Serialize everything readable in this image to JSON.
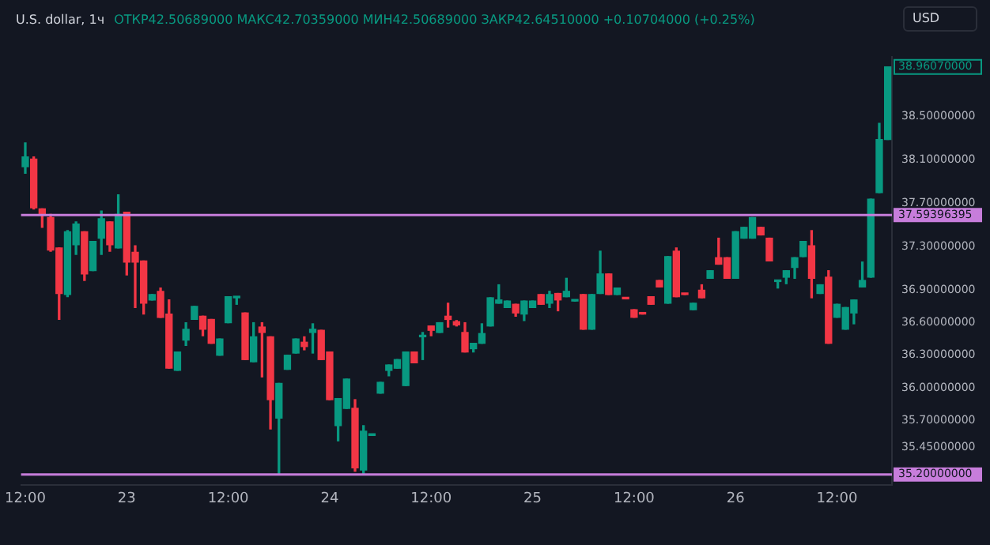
{
  "chart_data": {
    "type": "candlestick",
    "title": "U.S. dollar, 1ч",
    "subtitle": "ОТКР42.50689000 МАКС42.70359000 МИН42.50689000 ЗАКР42.64510000 +0.10704000 (+0.25%)",
    "annotations": [
      "USD",
      "38.96070000"
    ],
    "categories": [
      "12:00",
      null,
      null,
      null,
      null,
      null,
      null,
      null,
      null,
      null,
      null,
      null,
      "23",
      null,
      null,
      null,
      null,
      null,
      null,
      null,
      null,
      null,
      null,
      null,
      "12:00",
      null,
      null,
      null,
      null,
      null,
      null,
      null,
      null,
      null,
      null,
      null,
      "24",
      null,
      null,
      null,
      null,
      null,
      null,
      null,
      null,
      null,
      null,
      null,
      "12:00",
      null,
      null,
      null,
      null,
      null,
      null,
      null,
      null,
      null,
      null,
      null,
      "25",
      null,
      null,
      null,
      null,
      null,
      null,
      null,
      null,
      null,
      null,
      null,
      "12:00",
      null,
      null,
      null,
      null,
      null,
      null,
      null,
      null,
      null,
      null,
      null,
      "26",
      null,
      null,
      null,
      null,
      null,
      null,
      null,
      null,
      null,
      null,
      null,
      "12:00",
      null,
      null,
      null,
      null,
      null,
      null
    ],
    "ohlc": [
      [
        38.04,
        38.26,
        37.98,
        38.13
      ],
      [
        38.11,
        38.13,
        37.65,
        37.66
      ],
      [
        37.65,
        37.65,
        37.48,
        37.6
      ],
      [
        37.57,
        37.6,
        37.26,
        37.27
      ],
      [
        37.29,
        37.29,
        36.63,
        36.87
      ],
      [
        36.86,
        37.45,
        36.84,
        37.44
      ],
      [
        37.32,
        37.53,
        37.23,
        37.51
      ],
      [
        37.44,
        37.44,
        36.99,
        37.05
      ],
      [
        37.08,
        37.35,
        37.08,
        37.35
      ],
      [
        37.38,
        37.63,
        37.23,
        37.56
      ],
      [
        37.53,
        37.53,
        37.26,
        37.32
      ],
      [
        37.29,
        37.78,
        37.29,
        37.6
      ],
      [
        37.62,
        37.62,
        37.04,
        37.16
      ],
      [
        37.25,
        37.31,
        36.74,
        37.16
      ],
      [
        37.17,
        37.17,
        36.68,
        36.78
      ],
      [
        36.81,
        36.86,
        36.81,
        36.86
      ],
      [
        36.89,
        36.92,
        36.65,
        36.65
      ],
      [
        36.68,
        36.81,
        36.18,
        36.18
      ],
      [
        36.16,
        36.33,
        36.16,
        36.33
      ],
      [
        36.44,
        36.6,
        36.39,
        36.54
      ],
      [
        36.63,
        36.75,
        36.63,
        36.75
      ],
      [
        36.66,
        36.66,
        36.48,
        36.54
      ],
      [
        36.63,
        36.63,
        36.41,
        36.41
      ],
      [
        36.3,
        36.45,
        36.3,
        36.45
      ],
      [
        36.6,
        36.84,
        36.6,
        36.84
      ],
      [
        36.83,
        36.84,
        36.77,
        36.84
      ],
      [
        36.69,
        36.69,
        36.26,
        36.26
      ],
      [
        36.24,
        36.6,
        36.24,
        36.47
      ],
      [
        36.56,
        36.6,
        36.1,
        36.51
      ],
      [
        36.47,
        36.47,
        35.62,
        35.89
      ],
      [
        35.72,
        36.04,
        35.2,
        36.04
      ],
      [
        36.17,
        36.3,
        36.17,
        36.3
      ],
      [
        36.32,
        36.45,
        36.32,
        36.45
      ],
      [
        36.42,
        36.47,
        36.35,
        36.38
      ],
      [
        36.51,
        36.59,
        36.32,
        36.54
      ],
      [
        36.53,
        36.53,
        36.26,
        36.26
      ],
      [
        36.33,
        36.33,
        35.89,
        35.89
      ],
      [
        35.65,
        35.9,
        35.51,
        35.9
      ],
      [
        35.81,
        36.08,
        35.81,
        36.08
      ],
      [
        35.81,
        35.89,
        35.23,
        35.26
      ],
      [
        35.24,
        35.65,
        35.21,
        35.6
      ],
      [
        35.56,
        35.57,
        35.56,
        35.57
      ],
      [
        35.95,
        36.05,
        35.95,
        36.05
      ],
      [
        36.16,
        36.21,
        36.11,
        36.21
      ],
      [
        36.18,
        36.26,
        36.18,
        36.26
      ],
      [
        36.02,
        36.33,
        36.02,
        36.33
      ],
      [
        36.33,
        36.33,
        36.23,
        36.23
      ],
      [
        36.47,
        36.51,
        36.26,
        36.48
      ],
      [
        36.57,
        36.57,
        36.48,
        36.53
      ],
      [
        36.51,
        36.6,
        36.51,
        36.6
      ],
      [
        36.66,
        36.78,
        36.56,
        36.63
      ],
      [
        36.61,
        36.62,
        36.57,
        36.58
      ],
      [
        36.51,
        36.6,
        36.33,
        36.33
      ],
      [
        36.36,
        36.41,
        36.33,
        36.41
      ],
      [
        36.41,
        36.59,
        36.41,
        36.5
      ],
      [
        36.57,
        36.83,
        36.57,
        36.83
      ],
      [
        36.78,
        36.95,
        36.78,
        36.81
      ],
      [
        36.74,
        36.8,
        36.74,
        36.8
      ],
      [
        36.77,
        36.77,
        36.66,
        36.69
      ],
      [
        36.68,
        36.8,
        36.62,
        36.8
      ],
      [
        36.74,
        36.8,
        36.74,
        36.8
      ],
      [
        36.86,
        36.86,
        36.77,
        36.77
      ],
      [
        36.78,
        36.89,
        36.74,
        36.86
      ],
      [
        36.87,
        36.87,
        36.71,
        36.81
      ],
      [
        36.84,
        37.01,
        36.84,
        36.89
      ],
      [
        36.8,
        36.81,
        36.8,
        36.81
      ],
      [
        36.86,
        36.86,
        36.54,
        36.54
      ],
      [
        36.54,
        36.86,
        36.54,
        36.86
      ],
      [
        36.87,
        37.26,
        36.87,
        37.05
      ],
      [
        37.05,
        37.05,
        36.86,
        36.86
      ],
      [
        36.86,
        36.92,
        36.86,
        36.92
      ],
      [
        36.83,
        36.83,
        36.82,
        36.82
      ],
      [
        36.72,
        36.72,
        36.65,
        36.65
      ],
      [
        36.69,
        36.69,
        36.68,
        36.68
      ],
      [
        36.84,
        36.84,
        36.77,
        36.77
      ],
      [
        36.99,
        36.99,
        36.93,
        36.93
      ],
      [
        36.78,
        37.21,
        36.78,
        37.21
      ],
      [
        37.26,
        37.29,
        36.84,
        36.84
      ],
      [
        36.87,
        36.87,
        36.86,
        36.86
      ],
      [
        36.72,
        36.78,
        36.72,
        36.78
      ],
      [
        36.9,
        36.95,
        36.83,
        36.83
      ],
      [
        37.01,
        37.08,
        37.01,
        37.08
      ],
      [
        37.2,
        37.38,
        37.14,
        37.14
      ],
      [
        37.2,
        37.2,
        37.01,
        37.01
      ],
      [
        37.01,
        37.44,
        37.01,
        37.44
      ],
      [
        37.38,
        37.48,
        37.38,
        37.48
      ],
      [
        37.38,
        37.57,
        37.38,
        37.57
      ],
      [
        37.48,
        37.48,
        37.41,
        37.41
      ],
      [
        37.38,
        37.38,
        37.17,
        37.17
      ],
      [
        36.98,
        36.99,
        36.92,
        36.99
      ],
      [
        37.02,
        37.08,
        36.96,
        37.08
      ],
      [
        37.11,
        37.2,
        37.01,
        37.2
      ],
      [
        37.21,
        37.35,
        37.21,
        37.35
      ],
      [
        37.31,
        37.45,
        36.83,
        37.01
      ],
      [
        36.87,
        36.95,
        36.87,
        36.95
      ],
      [
        37.02,
        37.08,
        36.41,
        36.41
      ],
      [
        36.65,
        36.77,
        36.65,
        36.77
      ],
      [
        36.54,
        36.74,
        36.54,
        36.74
      ],
      [
        36.69,
        36.81,
        36.59,
        36.81
      ],
      [
        36.93,
        37.16,
        36.93,
        36.99
      ],
      [
        37.02,
        37.74,
        37.02,
        37.74
      ],
      [
        37.8,
        38.44,
        37.8,
        38.29
      ],
      [
        38.29,
        38.96,
        38.29,
        38.96
      ]
    ],
    "colors": [
      "#089981",
      "#f23645",
      "#f23645",
      "#f23645",
      "#f23645",
      "#089981",
      "#089981",
      "#f23645",
      "#089981",
      "#089981",
      "#f23645",
      "#089981",
      "#f23645",
      "#f23645",
      "#f23645",
      "#089981",
      "#f23645",
      "#f23645",
      "#089981",
      "#089981",
      "#089981",
      "#f23645",
      "#f23645",
      "#089981",
      "#089981",
      "#089981",
      "#f23645",
      "#089981",
      "#f23645",
      "#f23645",
      "#089981",
      "#089981",
      "#089981",
      "#f23645",
      "#089981",
      "#f23645",
      "#f23645",
      "#089981",
      "#089981",
      "#f23645",
      "#089981",
      "#089981",
      "#089981",
      "#089981",
      "#089981",
      "#089981",
      "#f23645",
      "#089981",
      "#f23645",
      "#089981",
      "#f23645",
      "#f23645",
      "#f23645",
      "#089981",
      "#089981",
      "#089981",
      "#089981",
      "#089981",
      "#f23645",
      "#089981",
      "#089981",
      "#f23645",
      "#089981",
      "#f23645",
      "#089981",
      "#089981",
      "#f23645",
      "#089981",
      "#089981",
      "#f23645",
      "#089981",
      "#f23645",
      "#f23645",
      "#f23645",
      "#f23645",
      "#f23645",
      "#089981",
      "#f23645",
      "#f23645",
      "#089981",
      "#f23645",
      "#089981",
      "#f23645",
      "#f23645",
      "#089981",
      "#089981",
      "#089981",
      "#f23645",
      "#f23645",
      "#089981",
      "#089981",
      "#089981",
      "#089981",
      "#f23645",
      "#089981",
      "#f23645",
      "#089981",
      "#089981",
      "#089981",
      "#089981",
      "#089981",
      "#089981",
      "#089981"
    ],
    "ylim": [
      35.1,
      39.05
    ],
    "yticks": [
      {
        "value": 35.45,
        "label": "35.45000000"
      },
      {
        "value": 35.7,
        "label": "35.70000000"
      },
      {
        "value": 36.0,
        "label": "36.00000000"
      },
      {
        "value": 36.3,
        "label": "36.30000000"
      },
      {
        "value": 36.6,
        "label": "36.60000000"
      },
      {
        "value": 36.9,
        "label": "36.90000000"
      },
      {
        "value": 37.3,
        "label": "37.30000000"
      },
      {
        "value": 37.7,
        "label": "37.70000000"
      },
      {
        "value": 38.1,
        "label": "38.10000000"
      },
      {
        "value": 38.5,
        "label": "38.50000000"
      }
    ],
    "ref_lines": [
      {
        "axis": "y",
        "value": 37.59396395,
        "label": "37.59396395",
        "color": "#c77ddb"
      },
      {
        "axis": "y",
        "value": 35.2,
        "label": "35.20000000",
        "color": "#c77ddb"
      }
    ],
    "legend": false
  }
}
